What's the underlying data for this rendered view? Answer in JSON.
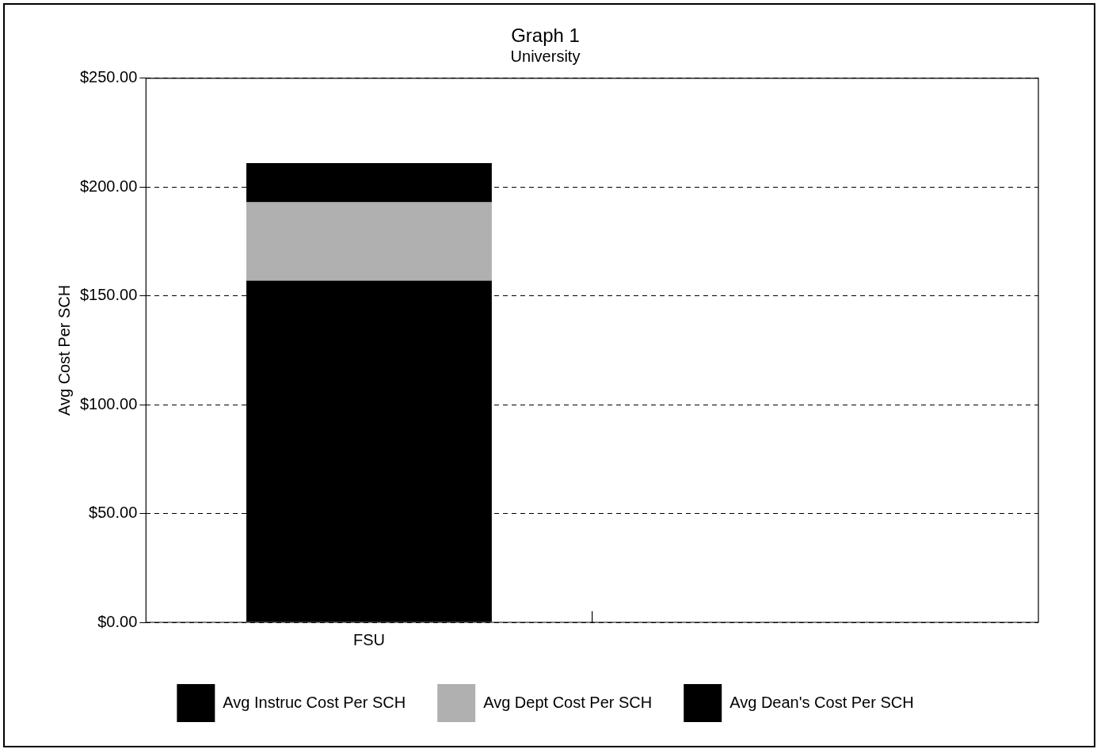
{
  "chart_data": {
    "type": "bar",
    "title": "Graph 1",
    "subtitle": "University",
    "ylabel": "Avg Cost Per SCH",
    "categories": [
      "FSU",
      null
    ],
    "series": [
      {
        "name": "Avg Instruc Cost Per SCH",
        "color": "#000000",
        "values": [
          157,
          null
        ]
      },
      {
        "name": "Avg Dept Cost Per SCH",
        "color": "#b0b0b0",
        "values": [
          36,
          null
        ]
      },
      {
        "name": "Avg Dean's Cost Per SCH",
        "color": "#000000",
        "values": [
          18,
          null
        ]
      }
    ],
    "stacked": true,
    "ylim": [
      0,
      250
    ],
    "yticks": [
      {
        "value": 0,
        "label": "$0.00"
      },
      {
        "value": 50,
        "label": "$50.00"
      },
      {
        "value": 100,
        "label": "$100.00"
      },
      {
        "value": 150,
        "label": "$150.00"
      },
      {
        "value": 200,
        "label": "$200.00"
      },
      {
        "value": 250,
        "label": "$250.00"
      }
    ],
    "grid": "y",
    "line_style": "dashed",
    "legend": "bottom"
  }
}
